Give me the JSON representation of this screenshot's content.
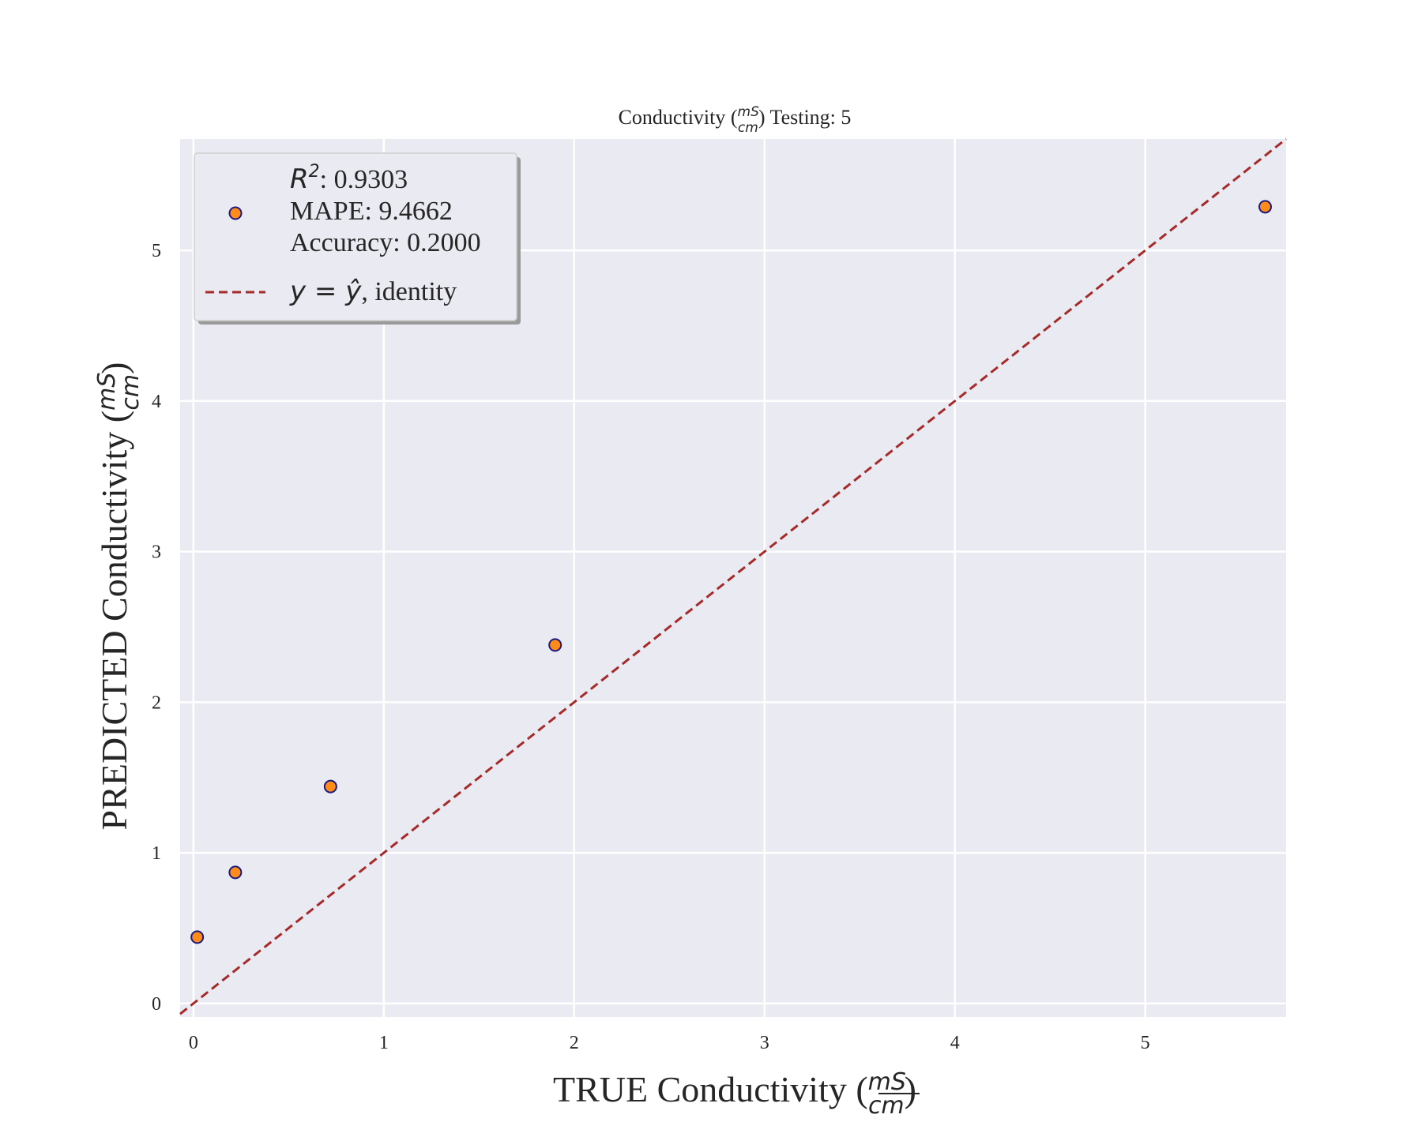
{
  "chart_data": {
    "type": "scatter",
    "title": {
      "prefix": "Conductivity (",
      "frac_num": "mS",
      "frac_den": "cm",
      "suffix": ") Testing: 5"
    },
    "xlabel": {
      "prefix": "TRUE Conductivity (",
      "frac_num": "mS",
      "frac_den": "cm",
      "suffix": ")"
    },
    "ylabel": {
      "prefix": "PREDICTED Conductivity (",
      "frac_num": "mS",
      "frac_den": "cm",
      "suffix": ")"
    },
    "xlim": [
      -0.07,
      5.74
    ],
    "ylim": [
      -0.09,
      5.74
    ],
    "xticks": [
      0,
      1,
      2,
      3,
      4,
      5
    ],
    "yticks": [
      0,
      1,
      2,
      3,
      4,
      5
    ],
    "grid": true,
    "background": "#eaeaf2",
    "series": [
      {
        "kind": "points",
        "x": [
          0.02,
          0.22,
          0.72,
          1.9,
          5.63
        ],
        "y": [
          0.44,
          0.87,
          1.44,
          2.38,
          5.29
        ],
        "color": "#ff8c1a",
        "edgecolor": "#1a1a80"
      },
      {
        "kind": "identity-line",
        "x": [
          -0.07,
          5.74
        ],
        "y": [
          -0.07,
          5.74
        ],
        "color": "#a52a2a",
        "style": "dashed"
      }
    ],
    "legend": {
      "position": "top-left",
      "scatter_lines": [
        {
          "math": "R",
          "sup": "2",
          "text": ": 0.9303"
        },
        {
          "text": "MAPE: 9.4662"
        },
        {
          "text": "Accuracy: 0.2000"
        }
      ],
      "line_entry": {
        "math": "y = ŷ",
        "text": ", identity"
      }
    }
  }
}
